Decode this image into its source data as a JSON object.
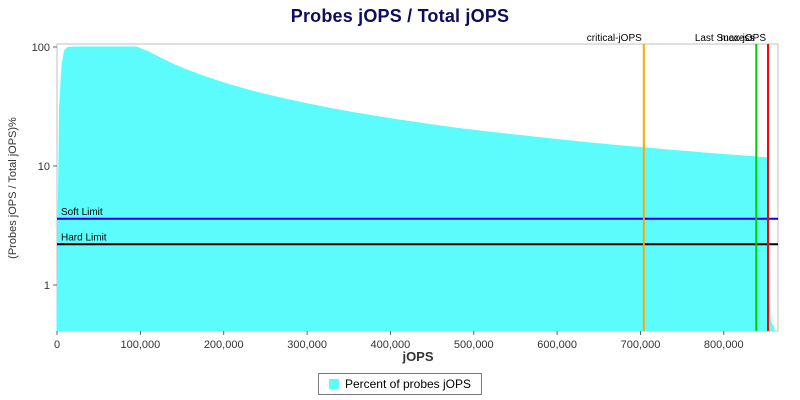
{
  "title": "Probes jOPS / Total jOPS",
  "legend": {
    "label": "Percent of probes jOPS",
    "swatch_color": "#5cfcfc"
  },
  "chart_data": {
    "type": "area",
    "title": "Probes jOPS / Total jOPS",
    "xlabel": "jOPS",
    "ylabel": "(Probes jOPS / Total jOPS)%",
    "x_axis_scale": "linear",
    "y_axis_scale": "log",
    "xlim": [
      0,
      865000
    ],
    "ylim": [
      0.4,
      110
    ],
    "x_ticks": [
      0,
      100000,
      200000,
      300000,
      400000,
      500000,
      600000,
      700000,
      800000
    ],
    "x_tick_labels": [
      "0",
      "100,000",
      "200,000",
      "300,000",
      "400,000",
      "500,000",
      "600,000",
      "700,000",
      "800,000"
    ],
    "y_ticks": [
      1,
      10,
      100
    ],
    "y_tick_labels": [
      "1",
      "10",
      "100"
    ],
    "grid": false,
    "legend_position": "bottom-center",
    "series": [
      {
        "name": "Percent of probes jOPS",
        "color": "#5cfcfc",
        "points": [
          [
            0,
            0.5
          ],
          [
            3000,
            30
          ],
          [
            6000,
            70
          ],
          [
            9000,
            93
          ],
          [
            13000,
            99
          ],
          [
            20000,
            100
          ],
          [
            95000,
            100
          ],
          [
            110000,
            90.9
          ],
          [
            125000,
            80
          ],
          [
            140000,
            71.4
          ],
          [
            160000,
            62.5
          ],
          [
            180000,
            55.6
          ],
          [
            200000,
            50
          ],
          [
            225000,
            44.4
          ],
          [
            250000,
            40
          ],
          [
            275000,
            36.4
          ],
          [
            300000,
            33.3
          ],
          [
            330000,
            30.3
          ],
          [
            360000,
            27.8
          ],
          [
            400000,
            25
          ],
          [
            440000,
            22.7
          ],
          [
            480000,
            20.8
          ],
          [
            520000,
            19.2
          ],
          [
            560000,
            17.9
          ],
          [
            600000,
            16.7
          ],
          [
            640000,
            15.6
          ],
          [
            680000,
            14.7
          ],
          [
            700000,
            14.3
          ],
          [
            720000,
            13.9
          ],
          [
            740000,
            13.5
          ],
          [
            760000,
            13.2
          ],
          [
            780000,
            12.8
          ],
          [
            800000,
            12.5
          ],
          [
            820000,
            12.2
          ],
          [
            835000,
            12.0
          ],
          [
            845000,
            11.8
          ],
          [
            852000,
            11.7
          ],
          [
            853000,
            11.6
          ],
          [
            853600,
            4
          ],
          [
            854500,
            0.7
          ],
          [
            856000,
            0.5
          ],
          [
            858000,
            0.46
          ],
          [
            860000,
            0.45
          ]
        ]
      }
    ],
    "vlines": [
      {
        "name": "critical-jops",
        "label": "critical-jOPS",
        "x": 704000,
        "color": "#ffa500"
      },
      {
        "name": "last-success",
        "label": "Last Success",
        "x": 839000,
        "color": "#00cc00"
      },
      {
        "name": "max-jops",
        "label": "max-jOPS",
        "x": 853000,
        "color": "#ff0000"
      }
    ],
    "hlines": [
      {
        "name": "soft-limit",
        "label": "Soft Limit",
        "y": 3.6,
        "color": "#0000ff"
      },
      {
        "name": "hard-limit",
        "label": "Hard Limit",
        "y": 2.2,
        "color": "#000000"
      }
    ]
  }
}
